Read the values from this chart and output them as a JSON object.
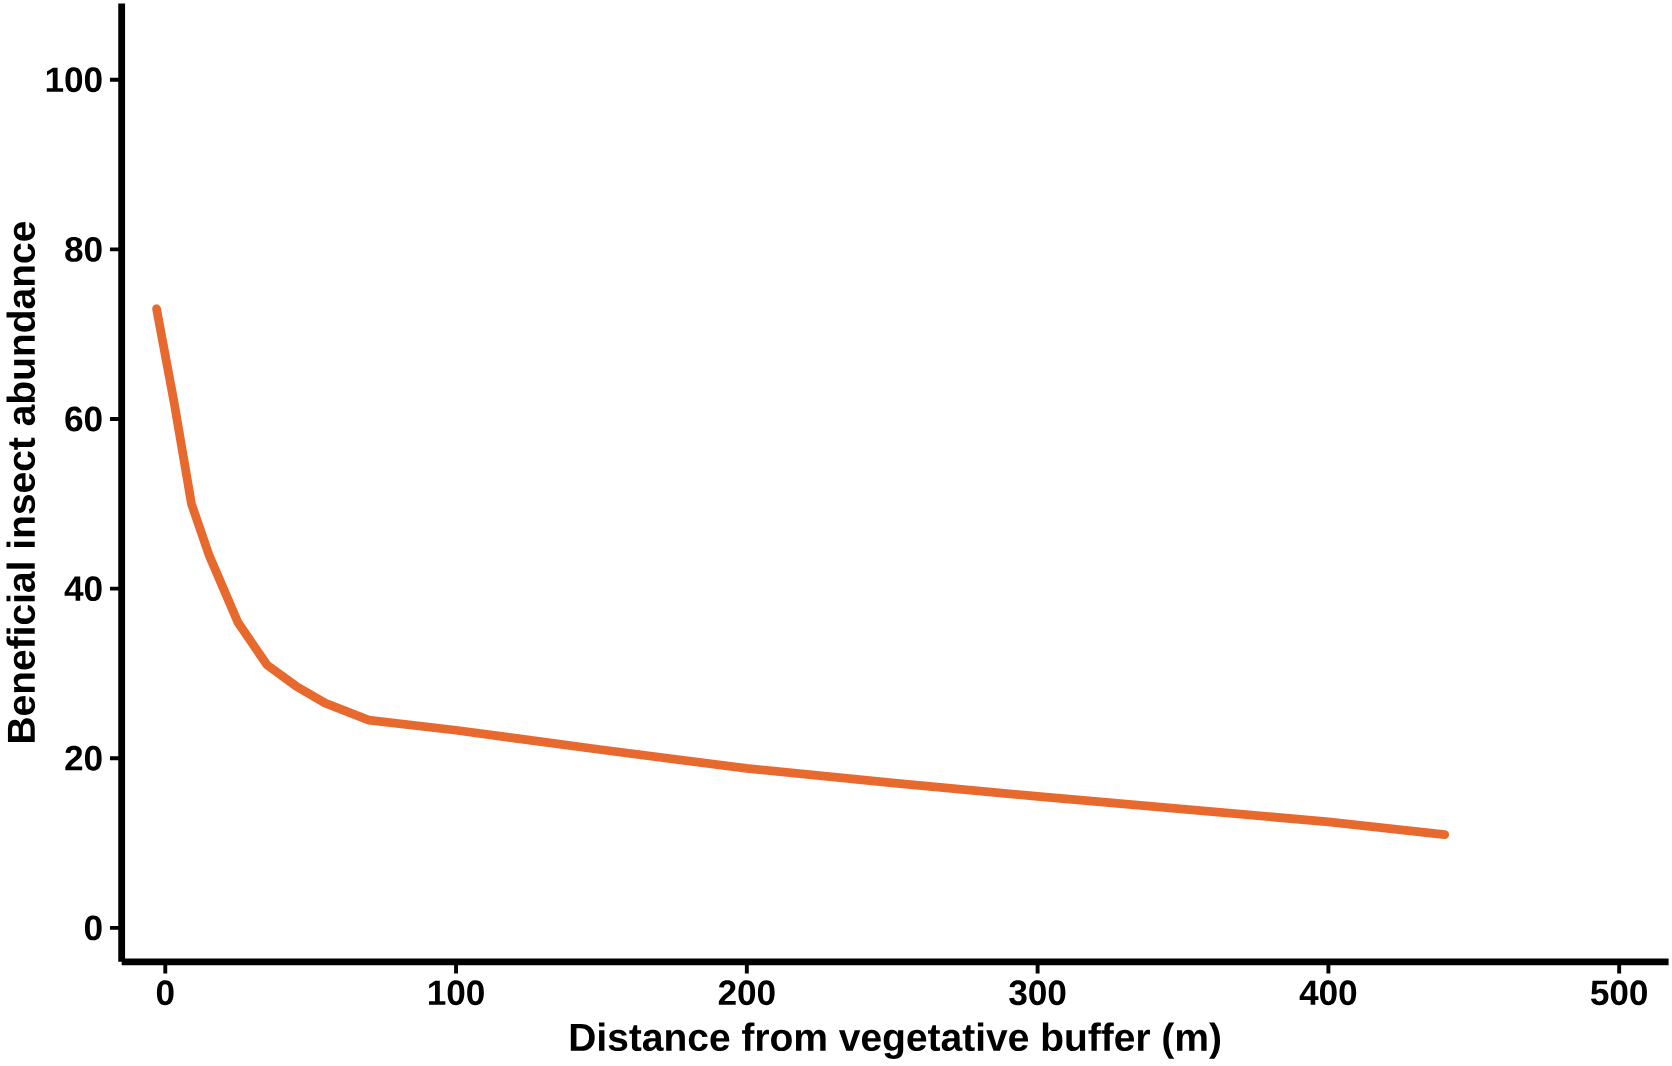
{
  "chart_data": {
    "type": "line",
    "xlabel": "Distance from vegetative buffer (m)",
    "ylabel": "Beneficial insect abundance",
    "series": [
      {
        "color": "#e8692e",
        "x": [
          -3,
          3,
          9,
          15,
          25,
          35,
          45,
          55,
          70,
          100,
          150,
          200,
          250,
          300,
          350,
          400,
          440
        ],
        "values": [
          73,
          62,
          50,
          44,
          36,
          31,
          28.5,
          26.5,
          24.5,
          23.3,
          21,
          18.8,
          17.1,
          15.5,
          14,
          12.5,
          11
        ]
      }
    ],
    "xlim": [
      -15,
      517
    ],
    "ylim": [
      -4,
      109
    ],
    "xticks": [
      0,
      100,
      200,
      300,
      400,
      500
    ],
    "yticks": [
      0,
      20,
      40,
      60,
      80,
      100
    ],
    "grid": false,
    "marker": "none",
    "line_style": "solid"
  }
}
